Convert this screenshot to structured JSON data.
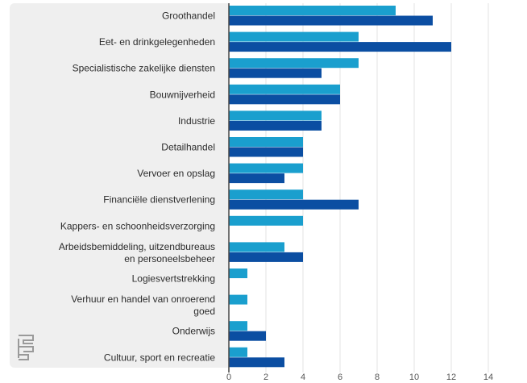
{
  "chart_data": {
    "type": "bar",
    "orientation": "horizontal",
    "categories": [
      "Groothandel",
      "Eet- en drinkgelegenheden",
      "Specialistische zakelijke diensten",
      "Bouwnijverheid",
      "Industrie",
      "Detailhandel",
      "Vervoer en opslag",
      "Financiële dienstverlening",
      "Kappers- en schoonheidsverzorging",
      "Arbeidsbemiddeling, uitzendbureaus en personeelsbeheer",
      "Logiesvertstrekking",
      "Verhuur en handel van onroerend goed",
      "Onderwijs",
      "Cultuur, sport en recreatie"
    ],
    "series": [
      {
        "values": [
          9,
          7,
          7,
          6,
          5,
          4,
          4,
          4,
          4,
          3,
          1,
          1,
          1,
          1
        ]
      },
      {
        "values": [
          11,
          12,
          5,
          6,
          5,
          4,
          3,
          7,
          0,
          4,
          0,
          0,
          2,
          3
        ]
      }
    ],
    "xlim": [
      0,
      14
    ],
    "xticks": [
      "0",
      "2",
      "4",
      "6",
      "8",
      "10",
      "12",
      "14"
    ],
    "grid": true
  },
  "colors": {
    "series": [
      "#1a9fce",
      "#0b4ea2"
    ],
    "grid": "#e3e3e3",
    "axis": "#444444",
    "panel": "#efefef"
  },
  "logo": {
    "icon": "cbs-logo-icon"
  }
}
